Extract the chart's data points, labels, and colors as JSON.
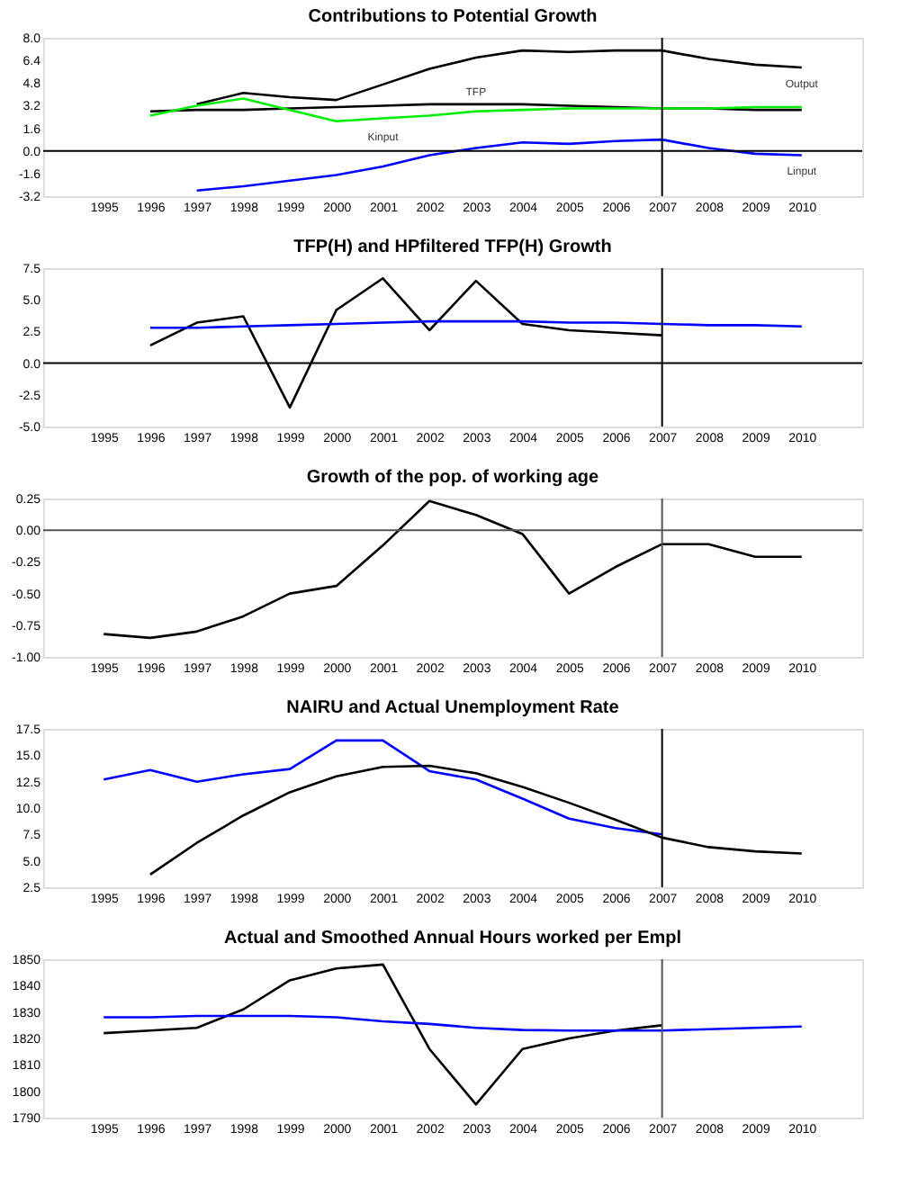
{
  "chart_data": [
    {
      "type": "line",
      "title": "Contributions to Potential Growth",
      "xlim": [
        1993.7,
        2011.3
      ],
      "xticks": [
        1995,
        1996,
        1997,
        1998,
        1999,
        2000,
        2001,
        2002,
        2003,
        2004,
        2005,
        2006,
        2007,
        2008,
        2009,
        2010
      ],
      "ylim": [
        -3.2,
        8.0
      ],
      "yticks": [
        {
          "value": -3.2,
          "label": "-3.2"
        },
        {
          "value": -1.6,
          "label": "-1.6"
        },
        {
          "value": 0,
          "label": "0.0"
        },
        {
          "value": 1.6,
          "label": "1.6"
        },
        {
          "value": 3.2,
          "label": "3.2"
        },
        {
          "value": 4.8,
          "label": "4.8"
        },
        {
          "value": 6.4,
          "label": "6.4"
        },
        {
          "value": 8.0,
          "label": "8.0"
        }
      ],
      "grid": false,
      "marker": "none",
      "line_style": "solid",
      "ref_lines": [
        {
          "axis": "x",
          "value": 2007,
          "color": "#000000"
        },
        {
          "axis": "y",
          "value": 0,
          "color": "#000000"
        }
      ],
      "series": [
        {
          "name": "Output",
          "color": "#000000",
          "x": [
            1997,
            1998,
            1999,
            2000,
            2001,
            2002,
            2003,
            2004,
            2005,
            2006,
            2007,
            2008,
            2009,
            2010
          ],
          "values": [
            3.3,
            4.1,
            3.8,
            3.6,
            4.7,
            5.8,
            6.6,
            7.1,
            7.0,
            7.1,
            7.1,
            6.5,
            6.1,
            5.9
          ]
        },
        {
          "name": "TFP",
          "color": "#000000",
          "x": [
            1996,
            1997,
            1998,
            1999,
            2000,
            2001,
            2002,
            2003,
            2004,
            2005,
            2006,
            2007,
            2008,
            2009,
            2010
          ],
          "values": [
            2.8,
            2.9,
            2.9,
            3.0,
            3.1,
            3.2,
            3.3,
            3.3,
            3.3,
            3.2,
            3.1,
            3.0,
            3.0,
            2.9,
            2.9
          ]
        },
        {
          "name": "Kinput",
          "color": "#00ee00",
          "x": [
            1996,
            1997,
            1998,
            1999,
            2000,
            2001,
            2002,
            2003,
            2004,
            2005,
            2006,
            2007,
            2008,
            2009,
            2010
          ],
          "values": [
            2.5,
            3.2,
            3.7,
            2.9,
            2.1,
            2.3,
            2.5,
            2.8,
            2.9,
            3.0,
            3.0,
            3.0,
            3.0,
            3.1,
            3.1
          ]
        },
        {
          "name": "Linput",
          "color": "#0000ff",
          "x": [
            1997,
            1998,
            1999,
            2000,
            2001,
            2002,
            2003,
            2004,
            2005,
            2006,
            2007,
            2008,
            2009,
            2010
          ],
          "values": [
            -2.8,
            -2.5,
            -2.1,
            -1.7,
            -1.1,
            -0.3,
            0.2,
            0.6,
            0.5,
            0.7,
            0.8,
            0.2,
            -0.2,
            -0.3
          ]
        }
      ]
    },
    {
      "type": "line",
      "title": "TFP(H) and HPfiltered TFP(H) Growth",
      "xlim": [
        1993.7,
        2011.3
      ],
      "xticks": [
        1995,
        1996,
        1997,
        1998,
        1999,
        2000,
        2001,
        2002,
        2003,
        2004,
        2005,
        2006,
        2007,
        2008,
        2009,
        2010
      ],
      "ylim": [
        -5.0,
        7.5
      ],
      "yticks": [
        {
          "value": -5,
          "label": "-5.0"
        },
        -2.5,
        {
          "value": 0,
          "label": "0.0"
        },
        2.5,
        {
          "value": 5,
          "label": "5.0"
        },
        7.5
      ],
      "grid": false,
      "marker": "none",
      "line_style": "solid",
      "ref_lines": [
        {
          "axis": "x",
          "value": 2007,
          "color": "#000000"
        },
        {
          "axis": "y",
          "value": 0,
          "color": "#000000"
        }
      ],
      "series": [
        {
          "color": "#000000",
          "x": [
            1996,
            1997,
            1998,
            1999,
            2000,
            2001,
            2002,
            2003,
            2004,
            2005,
            2006,
            2007
          ],
          "values": [
            1.4,
            3.2,
            3.7,
            -3.5,
            4.2,
            6.7,
            2.6,
            6.5,
            3.1,
            2.6,
            2.4,
            2.2
          ]
        },
        {
          "color": "#0000ff",
          "x": [
            1996,
            1997,
            1998,
            1999,
            2000,
            2001,
            2002,
            2003,
            2004,
            2005,
            2006,
            2007,
            2008,
            2009,
            2010
          ],
          "values": [
            2.8,
            2.8,
            2.9,
            3.0,
            3.1,
            3.2,
            3.3,
            3.3,
            3.3,
            3.2,
            3.2,
            3.1,
            3.0,
            3.0,
            2.9
          ]
        }
      ]
    },
    {
      "type": "line",
      "title": "Growth of the pop. of working age",
      "xlim": [
        1993.7,
        2011.3
      ],
      "xticks": [
        1995,
        1996,
        1997,
        1998,
        1999,
        2000,
        2001,
        2002,
        2003,
        2004,
        2005,
        2006,
        2007,
        2008,
        2009,
        2010
      ],
      "ylim": [
        -1.0,
        0.25
      ],
      "yticks": [
        {
          "value": -1,
          "label": "-1.00"
        },
        {
          "value": -0.75,
          "label": "-0.75"
        },
        {
          "value": -0.5,
          "label": "-0.50"
        },
        {
          "value": -0.25,
          "label": "-0.25"
        },
        {
          "value": 0,
          "label": "0.00"
        },
        {
          "value": 0.25,
          "label": "0.25"
        }
      ],
      "grid": false,
      "marker": "none",
      "line_style": "solid",
      "ref_lines": [
        {
          "axis": "x",
          "value": 2007,
          "color": "#555555"
        },
        {
          "axis": "y",
          "value": 0,
          "color": "#555555"
        }
      ],
      "series": [
        {
          "color": "#000000",
          "x": [
            1995,
            1996,
            1997,
            1998,
            1999,
            2000,
            2001,
            2002,
            2003,
            2004,
            2005,
            2006,
            2007,
            2008,
            2009,
            2010
          ],
          "values": [
            -0.82,
            -0.85,
            -0.8,
            -0.68,
            -0.5,
            -0.44,
            -0.12,
            0.23,
            0.12,
            -0.03,
            -0.5,
            -0.29,
            -0.11,
            -0.11,
            -0.21,
            -0.21
          ]
        }
      ]
    },
    {
      "type": "line",
      "title": "NAIRU and Actual Unemployment Rate",
      "xlim": [
        1993.7,
        2011.3
      ],
      "xticks": [
        1995,
        1996,
        1997,
        1998,
        1999,
        2000,
        2001,
        2002,
        2003,
        2004,
        2005,
        2006,
        2007,
        2008,
        2009,
        2010
      ],
      "ylim": [
        2.5,
        17.5
      ],
      "yticks": [
        2.5,
        {
          "value": 5,
          "label": "5.0"
        },
        7.5,
        {
          "value": 10,
          "label": "10.0"
        },
        12.5,
        {
          "value": 15,
          "label": "15.0"
        },
        17.5
      ],
      "grid": false,
      "marker": "none",
      "line_style": "solid",
      "ref_lines": [
        {
          "axis": "x",
          "value": 2007,
          "color": "#000000"
        }
      ],
      "series": [
        {
          "color": "#0000ff",
          "x": [
            1995,
            1996,
            1997,
            1998,
            1999,
            2000,
            2001,
            2002,
            2003,
            2004,
            2005,
            2006,
            2007
          ],
          "values": [
            12.7,
            13.6,
            12.5,
            13.2,
            13.7,
            16.4,
            16.4,
            13.5,
            12.7,
            10.9,
            9.0,
            8.1,
            7.5
          ]
        },
        {
          "color": "#000000",
          "x": [
            1996,
            1997,
            1998,
            1999,
            2000,
            2001,
            2002,
            2003,
            2004,
            2005,
            2006,
            2007,
            2008,
            2009,
            2010
          ],
          "values": [
            3.7,
            6.7,
            9.3,
            11.5,
            13.0,
            13.9,
            14.0,
            13.3,
            12.0,
            10.5,
            8.9,
            7.2,
            6.3,
            5.9,
            5.7
          ]
        }
      ]
    },
    {
      "type": "line",
      "title": "Actual and Smoothed Annual Hours worked per Empl",
      "xlim": [
        1993.7,
        2011.3
      ],
      "xticks": [
        1995,
        1996,
        1997,
        1998,
        1999,
        2000,
        2001,
        2002,
        2003,
        2004,
        2005,
        2006,
        2007,
        2008,
        2009,
        2010
      ],
      "ylim": [
        1790,
        1850
      ],
      "yticks": [
        1790,
        1800,
        1810,
        1820,
        1830,
        1840,
        1850
      ],
      "grid": false,
      "marker": "none",
      "line_style": "solid",
      "ref_lines": [
        {
          "axis": "x",
          "value": 2007,
          "color": "#555555"
        }
      ],
      "series": [
        {
          "color": "#000000",
          "x": [
            1995,
            1996,
            1997,
            1998,
            1999,
            2000,
            2001,
            2002,
            2003,
            2004,
            2005,
            2006,
            2007
          ],
          "values": [
            1822,
            1823,
            1824,
            1831,
            1842,
            1846.5,
            1848,
            1816,
            1795,
            1816,
            1820,
            1823,
            1825
          ]
        },
        {
          "color": "#0000ff",
          "x": [
            1995,
            1996,
            1997,
            1998,
            1999,
            2000,
            2001,
            2002,
            2003,
            2004,
            2005,
            2006,
            2007,
            2008,
            2009,
            2010
          ],
          "values": [
            1828,
            1828,
            1828.5,
            1828.5,
            1828.5,
            1828,
            1826.5,
            1825.5,
            1824,
            1823.2,
            1823,
            1823,
            1823,
            1823.5,
            1824,
            1824.5
          ]
        }
      ]
    }
  ]
}
